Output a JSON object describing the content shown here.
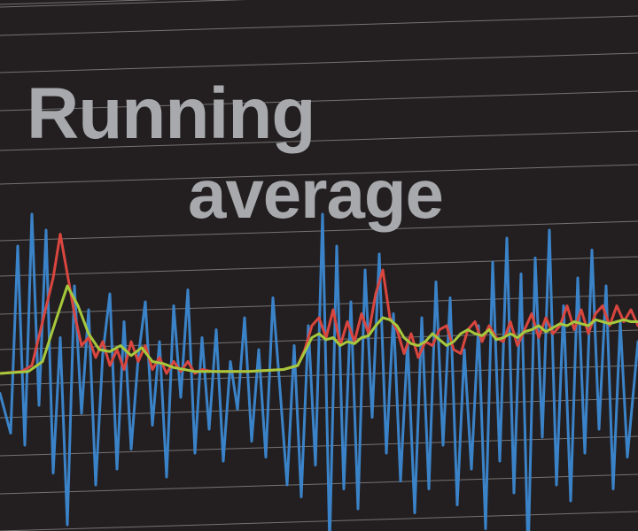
{
  "title": [
    "Running",
    "average"
  ],
  "colors": {
    "background": "#231f20",
    "grid": "#d6d6d6",
    "title": "#a7a9ac",
    "raw": "#3b83c8",
    "short_average": "#d9463f",
    "long_average": "#a6c83c"
  },
  "chart_data": {
    "type": "line",
    "grid": true,
    "grid_style": "horizontal lines, slightly tilted",
    "ylim": [
      -5,
      5
    ],
    "xlim": [
      0,
      180
    ],
    "series": [
      {
        "key": "raw",
        "color": "#3b83c8",
        "x": [
          0,
          3,
          5,
          7,
          9,
          11,
          13,
          15,
          17,
          19,
          21,
          23,
          25,
          27,
          29,
          31,
          33,
          35,
          37,
          39,
          41,
          43,
          45,
          47,
          49,
          51,
          53,
          55,
          57,
          59,
          61,
          63,
          65,
          67,
          69,
          71,
          73,
          75,
          77,
          79,
          81,
          83,
          85,
          87,
          89,
          91,
          93,
          95,
          97,
          99,
          101,
          103,
          105,
          107,
          109,
          111,
          113,
          115,
          117,
          119,
          121,
          123,
          125,
          127,
          129,
          131,
          133,
          135,
          137,
          139,
          141,
          143,
          145,
          147,
          149,
          151,
          153,
          155,
          157,
          159,
          161,
          163,
          165,
          167,
          169,
          171,
          173,
          175,
          177,
          180
        ],
        "values": [
          -0.5,
          -1.5,
          3.2,
          -1.8,
          4.0,
          -0.8,
          3.6,
          -2.5,
          0.9,
          -3.8,
          2.2,
          -1.0,
          1.6,
          -2.8,
          0.5,
          2.0,
          -2.4,
          1.3,
          -1.9,
          0.4,
          1.8,
          -1.3,
          0.8,
          -2.6,
          1.7,
          -0.6,
          2.1,
          -2.0,
          0.9,
          -1.4,
          1.1,
          -2.2,
          0.3,
          -0.9,
          1.4,
          -1.7,
          0.6,
          -2.1,
          1.9,
          -0.4,
          -2.8,
          0.7,
          -3.1,
          1.2,
          -2.3,
          4.0,
          -4.3,
          3.2,
          -2.9,
          1.8,
          -3.4,
          2.6,
          -1.1,
          3.0,
          -2.0,
          1.5,
          -2.7,
          0.8,
          -3.5,
          1.4,
          -2.9,
          2.3,
          -1.8,
          1.9,
          -3.3,
          0.6,
          -2.4,
          1.2,
          -3.9,
          2.8,
          -2.2,
          3.4,
          -3.0,
          2.5,
          -4.6,
          2.9,
          -1.6,
          3.6,
          -2.8,
          1.7,
          -3.2,
          2.4,
          -2.0,
          3.1,
          -1.4,
          2.2,
          -2.9,
          1.3,
          -2.1,
          0.8
        ]
      },
      {
        "key": "short_average",
        "color": "#d9463f",
        "x": [
          0,
          6,
          9,
          12,
          15,
          17,
          19,
          21,
          23,
          25,
          27,
          29,
          31,
          33,
          35,
          37,
          39,
          41,
          43,
          45,
          47,
          49,
          51,
          53,
          55,
          57,
          60,
          70,
          80,
          84,
          86,
          88,
          90,
          92,
          94,
          96,
          98,
          100,
          102,
          104,
          106,
          108,
          110,
          112,
          114,
          116,
          118,
          120,
          122,
          124,
          126,
          128,
          130,
          132,
          134,
          136,
          138,
          140,
          142,
          144,
          146,
          148,
          150,
          152,
          154,
          156,
          158,
          160,
          162,
          164,
          166,
          168,
          170,
          172,
          174,
          176,
          178,
          180
        ],
        "values": [
          0,
          0.05,
          0.2,
          1.3,
          2.4,
          3.5,
          2.5,
          1.5,
          0.7,
          0.9,
          0.4,
          0.8,
          0.2,
          0.6,
          0.1,
          0.8,
          0.3,
          0.7,
          0.1,
          0.4,
          0,
          0.3,
          0.05,
          0.3,
          0,
          0.1,
          0.05,
          0.05,
          0.1,
          0.2,
          0.6,
          1.2,
          1.4,
          0.9,
          1.6,
          0.7,
          1.3,
          0.8,
          1.5,
          1.0,
          2.0,
          2.6,
          1.4,
          1.1,
          0.5,
          1.0,
          0.4,
          0.8,
          0.7,
          1.1,
          1.2,
          0.6,
          0.5,
          1.1,
          1.3,
          0.8,
          1.2,
          0.9,
          0.8,
          1.3,
          0.7,
          1.1,
          1.5,
          0.9,
          1.4,
          1.0,
          1.2,
          1.7,
          1.1,
          1.6,
          1.0,
          1.5,
          1.7,
          1.2,
          1.7,
          1.3,
          1.6,
          1.2
        ]
      },
      {
        "key": "long_average",
        "color": "#a6c83c",
        "x": [
          0,
          8,
          12,
          16,
          19,
          22,
          25,
          28,
          31,
          34,
          37,
          40,
          43,
          46,
          49,
          52,
          55,
          60,
          70,
          80,
          84,
          86,
          88,
          90,
          92,
          94,
          96,
          98,
          100,
          102,
          104,
          106,
          108,
          110,
          112,
          114,
          116,
          118,
          120,
          122,
          124,
          126,
          128,
          130,
          132,
          134,
          136,
          138,
          140,
          142,
          144,
          146,
          148,
          150,
          152,
          154,
          156,
          158,
          160,
          162,
          164,
          166,
          168,
          170,
          172,
          174,
          176,
          178,
          180
        ],
        "values": [
          0,
          0.05,
          0.3,
          1.4,
          2.2,
          1.7,
          1.0,
          0.6,
          0.55,
          0.7,
          0.45,
          0.65,
          0.3,
          0.25,
          0.15,
          0.1,
          0.05,
          0.05,
          0.05,
          0.1,
          0.2,
          0.55,
          0.9,
          1.0,
          0.85,
          0.9,
          0.7,
          0.8,
          0.75,
          0.9,
          0.95,
          1.2,
          1.4,
          1.35,
          1.2,
          0.9,
          0.75,
          0.7,
          0.8,
          1.0,
          0.85,
          0.7,
          0.8,
          1.0,
          1.1,
          1.0,
          0.95,
          1.1,
          0.85,
          0.9,
          1.0,
          0.9,
          1.05,
          1.1,
          1.2,
          1.05,
          1.15,
          1.25,
          1.2,
          1.3,
          1.25,
          1.2,
          1.35,
          1.3,
          1.25,
          1.3,
          1.35,
          1.3,
          1.3
        ]
      }
    ]
  }
}
